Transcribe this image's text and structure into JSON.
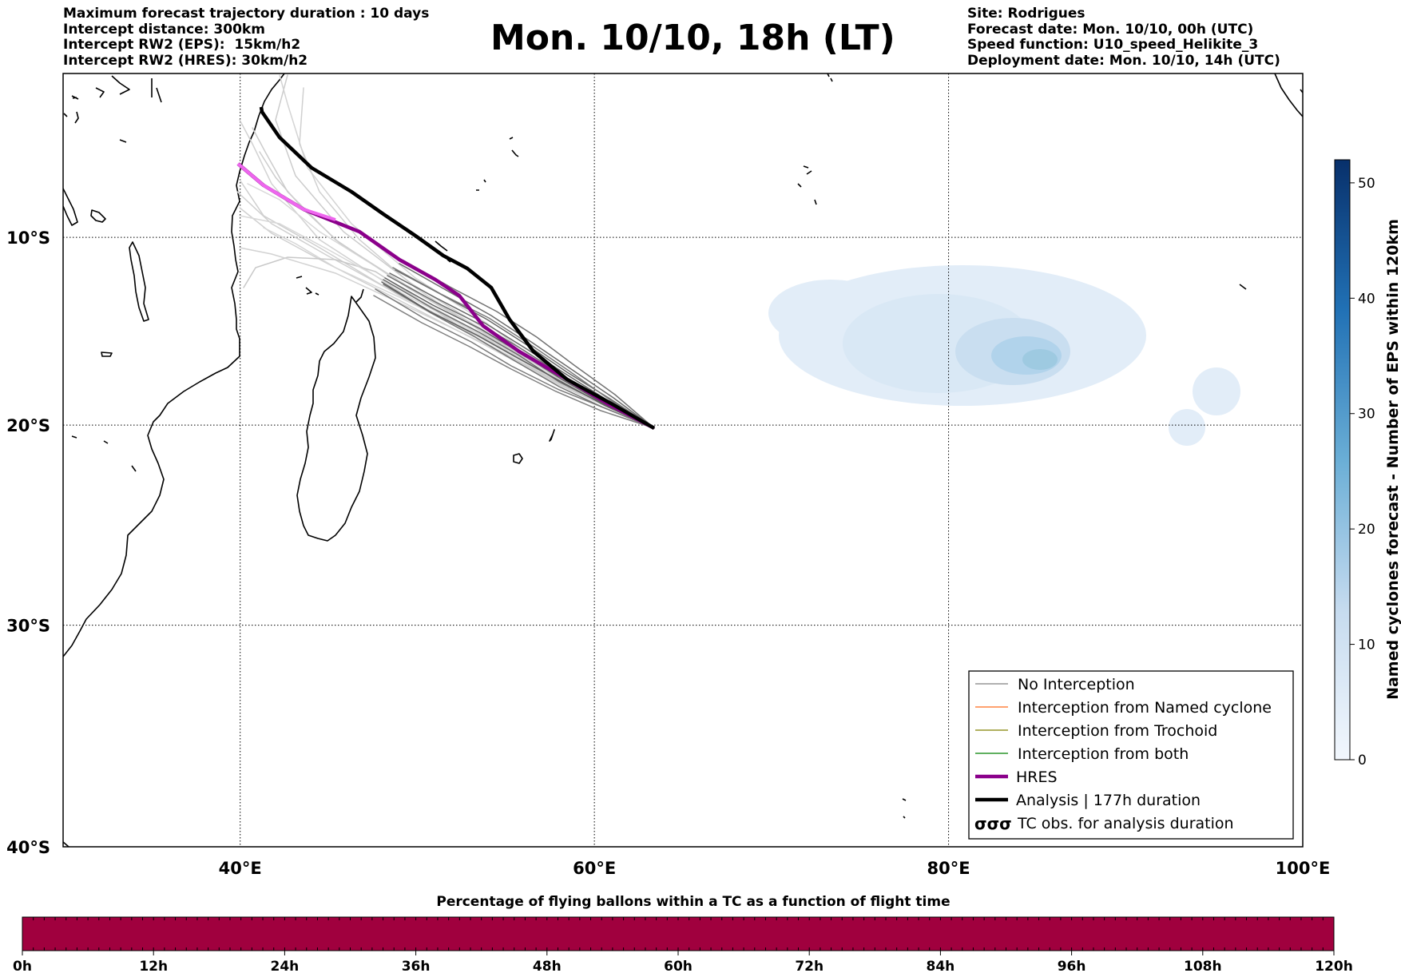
{
  "header": {
    "left_lines": [
      "Maximum forecast trajectory duration : 10 days",
      "Intercept distance: 300km",
      "Intercept RW2 (EPS):  15km/h2",
      "Intercept RW2 (HRES): 30km/h2"
    ],
    "title": "Mon. 10/10, 18h (LT)",
    "right_lines": [
      "Site: Rodrigues",
      "Forecast date: Mon. 10/10, 00h (UTC)",
      "Speed function: U10_speed_Helikite_3",
      "Deployment date: Mon. 10/10, 14h (UTC)"
    ]
  },
  "map": {
    "lon_range": [
      30,
      100
    ],
    "lat_range": [
      -40,
      -1
    ],
    "lon_ticks": [
      {
        "value": 40,
        "label": "40°E"
      },
      {
        "value": 60,
        "label": "60°E"
      },
      {
        "value": 80,
        "label": "80°E"
      },
      {
        "value": 100,
        "label": "100°E"
      }
    ],
    "lat_ticks": [
      {
        "value": -10,
        "label": "10°S"
      },
      {
        "value": -20,
        "label": "20°S"
      },
      {
        "value": -30,
        "label": "30°S"
      },
      {
        "value": -40,
        "label": "40°S"
      }
    ],
    "grid": "dotted"
  },
  "legend": {
    "position": "lower-right",
    "entries": [
      {
        "label": "No Interception",
        "color": "#808080",
        "style": "thin"
      },
      {
        "label": "Interception from Named cyclone",
        "color": "#ff6a1a",
        "style": "thin"
      },
      {
        "label": "Interception from Trochoid",
        "color": "#808000",
        "style": "thin"
      },
      {
        "label": "Interception from both",
        "color": "#008000",
        "style": "thin"
      },
      {
        "label": "HRES",
        "color": "#8b008b",
        "style": "thick"
      },
      {
        "label": "Analysis | 177h duration",
        "color": "#000000",
        "style": "thick"
      },
      {
        "label": "TC obs. for analysis duration",
        "color": "#000000",
        "style": "symbol"
      }
    ]
  },
  "colorbar_right": {
    "label": "Named cyclones forecast - Number of EPS within 120km",
    "range": [
      0,
      52
    ],
    "ticks": [
      0,
      10,
      20,
      30,
      40,
      50
    ],
    "colors": [
      "#f2f7fd",
      "#c6dbef",
      "#6aaed6",
      "#2171b5",
      "#08306b"
    ]
  },
  "colorbar_bottom": {
    "title": "Percentage of flying ballons within a TC as a function of flight time",
    "ticks": [
      "0h",
      "12h",
      "24h",
      "36h",
      "48h",
      "60h",
      "72h",
      "84h",
      "96h",
      "108h",
      "120h"
    ],
    "fill_color": "#a0003e"
  }
}
